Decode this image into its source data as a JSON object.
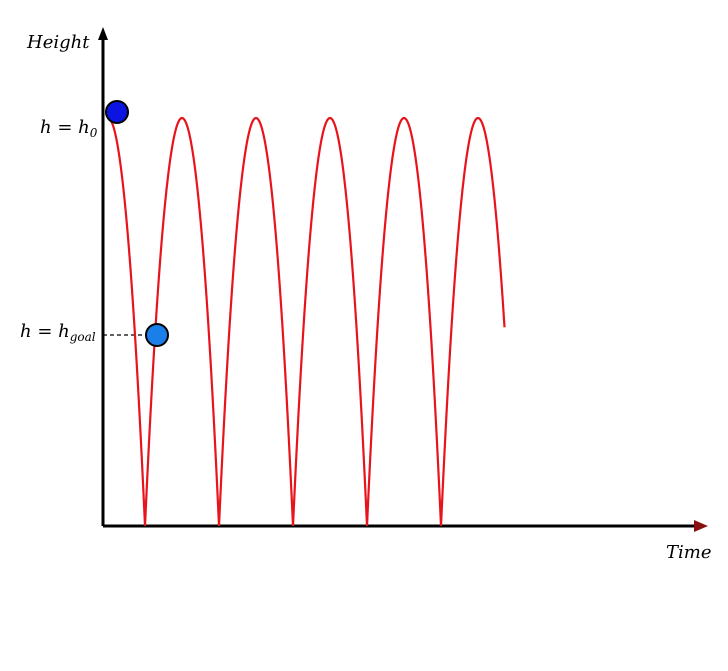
{
  "axes": {
    "y_label": "Height",
    "x_label": "Time"
  },
  "levels": {
    "h0": {
      "main": "h = h",
      "sub": "0"
    },
    "goal": {
      "main": "h = h",
      "sub": "goal"
    }
  },
  "colors": {
    "trajectory": "#e8141c",
    "axis": "#000000",
    "axis_arrow_x": "#8a1010",
    "ball_start": "#0b14e0",
    "ball_goal": "#1a7fe8",
    "dashed": "#000000"
  },
  "trajectory": {
    "type": "bouncing-ball",
    "bounces": 5,
    "peak_level": "h0",
    "ends_at_level": "goal"
  }
}
